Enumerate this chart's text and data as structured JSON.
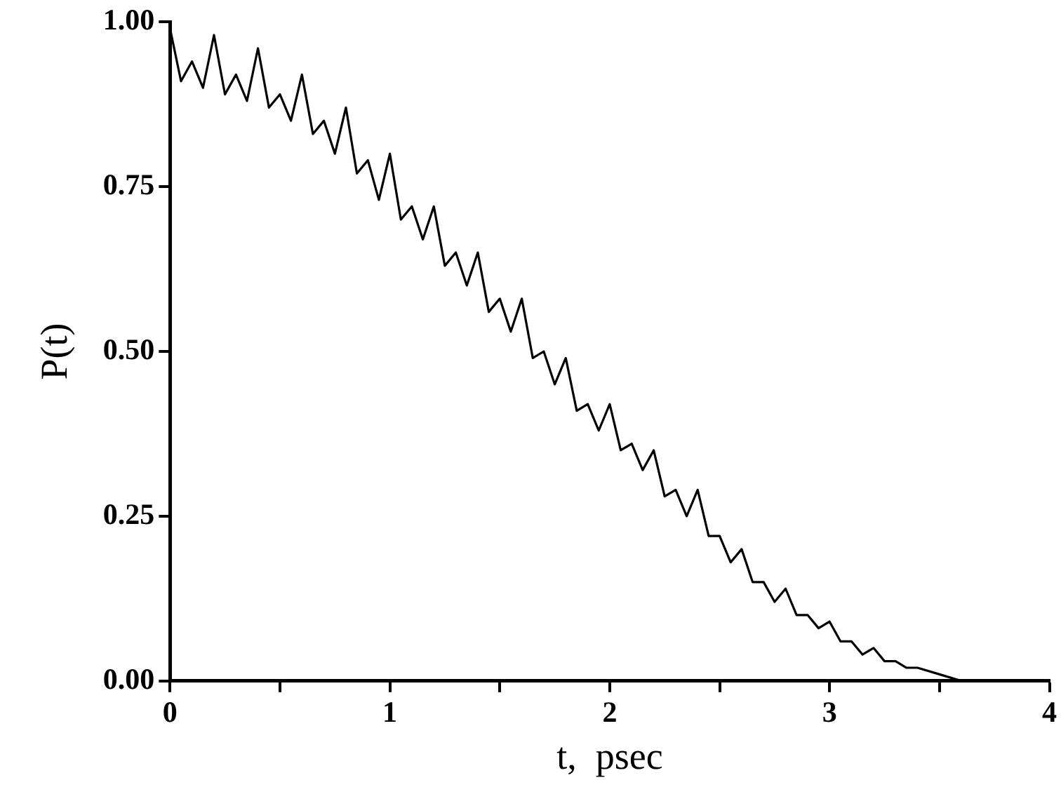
{
  "chart_data": {
    "type": "line",
    "xlabel": "t,  psec",
    "ylabel": "P(t)",
    "x": [
      0,
      0.05,
      0.1,
      0.15,
      0.2,
      0.25,
      0.3,
      0.35,
      0.4,
      0.45,
      0.5,
      0.55,
      0.6,
      0.65,
      0.7,
      0.75,
      0.8,
      0.85,
      0.9,
      0.95,
      1.0,
      1.05,
      1.1,
      1.15,
      1.2,
      1.25,
      1.3,
      1.35,
      1.4,
      1.45,
      1.5,
      1.55,
      1.6,
      1.65,
      1.7,
      1.75,
      1.8,
      1.85,
      1.9,
      1.95,
      2.0,
      2.05,
      2.1,
      2.15,
      2.2,
      2.25,
      2.3,
      2.35,
      2.4,
      2.45,
      2.5,
      2.55,
      2.6,
      2.65,
      2.7,
      2.75,
      2.8,
      2.85,
      2.9,
      2.95,
      3.0,
      3.05,
      3.1,
      3.15,
      3.2,
      3.25,
      3.3,
      3.35,
      3.4,
      3.5,
      3.6,
      4.0
    ],
    "series": [
      {
        "color": "#000000",
        "values": [
          0.99,
          0.91,
          0.94,
          0.9,
          0.98,
          0.89,
          0.92,
          0.88,
          0.96,
          0.87,
          0.89,
          0.85,
          0.92,
          0.83,
          0.85,
          0.8,
          0.87,
          0.77,
          0.79,
          0.73,
          0.8,
          0.7,
          0.72,
          0.67,
          0.72,
          0.63,
          0.65,
          0.6,
          0.65,
          0.56,
          0.58,
          0.53,
          0.58,
          0.49,
          0.5,
          0.45,
          0.49,
          0.41,
          0.42,
          0.38,
          0.42,
          0.35,
          0.36,
          0.32,
          0.35,
          0.28,
          0.29,
          0.25,
          0.29,
          0.22,
          0.22,
          0.18,
          0.2,
          0.15,
          0.15,
          0.12,
          0.14,
          0.1,
          0.1,
          0.08,
          0.09,
          0.06,
          0.06,
          0.04,
          0.05,
          0.03,
          0.03,
          0.02,
          0.02,
          0.01,
          0,
          0
        ]
      }
    ],
    "xlim": [
      0,
      4
    ],
    "xticks": [
      0,
      {
        "value": 0.5,
        "label": null
      },
      1,
      {
        "value": 1.5,
        "label": null
      },
      2,
      {
        "value": 2.5,
        "label": null
      },
      3,
      {
        "value": 3.5,
        "label": null
      },
      4
    ],
    "ylim": [
      0,
      1
    ],
    "yticks": [
      {
        "value": 0,
        "label": "0.00"
      },
      {
        "value": 0.25,
        "label": "0.25"
      },
      {
        "value": 0.5,
        "label": "0.50"
      },
      {
        "value": 0.75,
        "label": "0.75"
      },
      {
        "value": 1,
        "label": "1.00"
      }
    ],
    "grid": false,
    "legend": false,
    "marker": "none",
    "line_style": "solid"
  }
}
